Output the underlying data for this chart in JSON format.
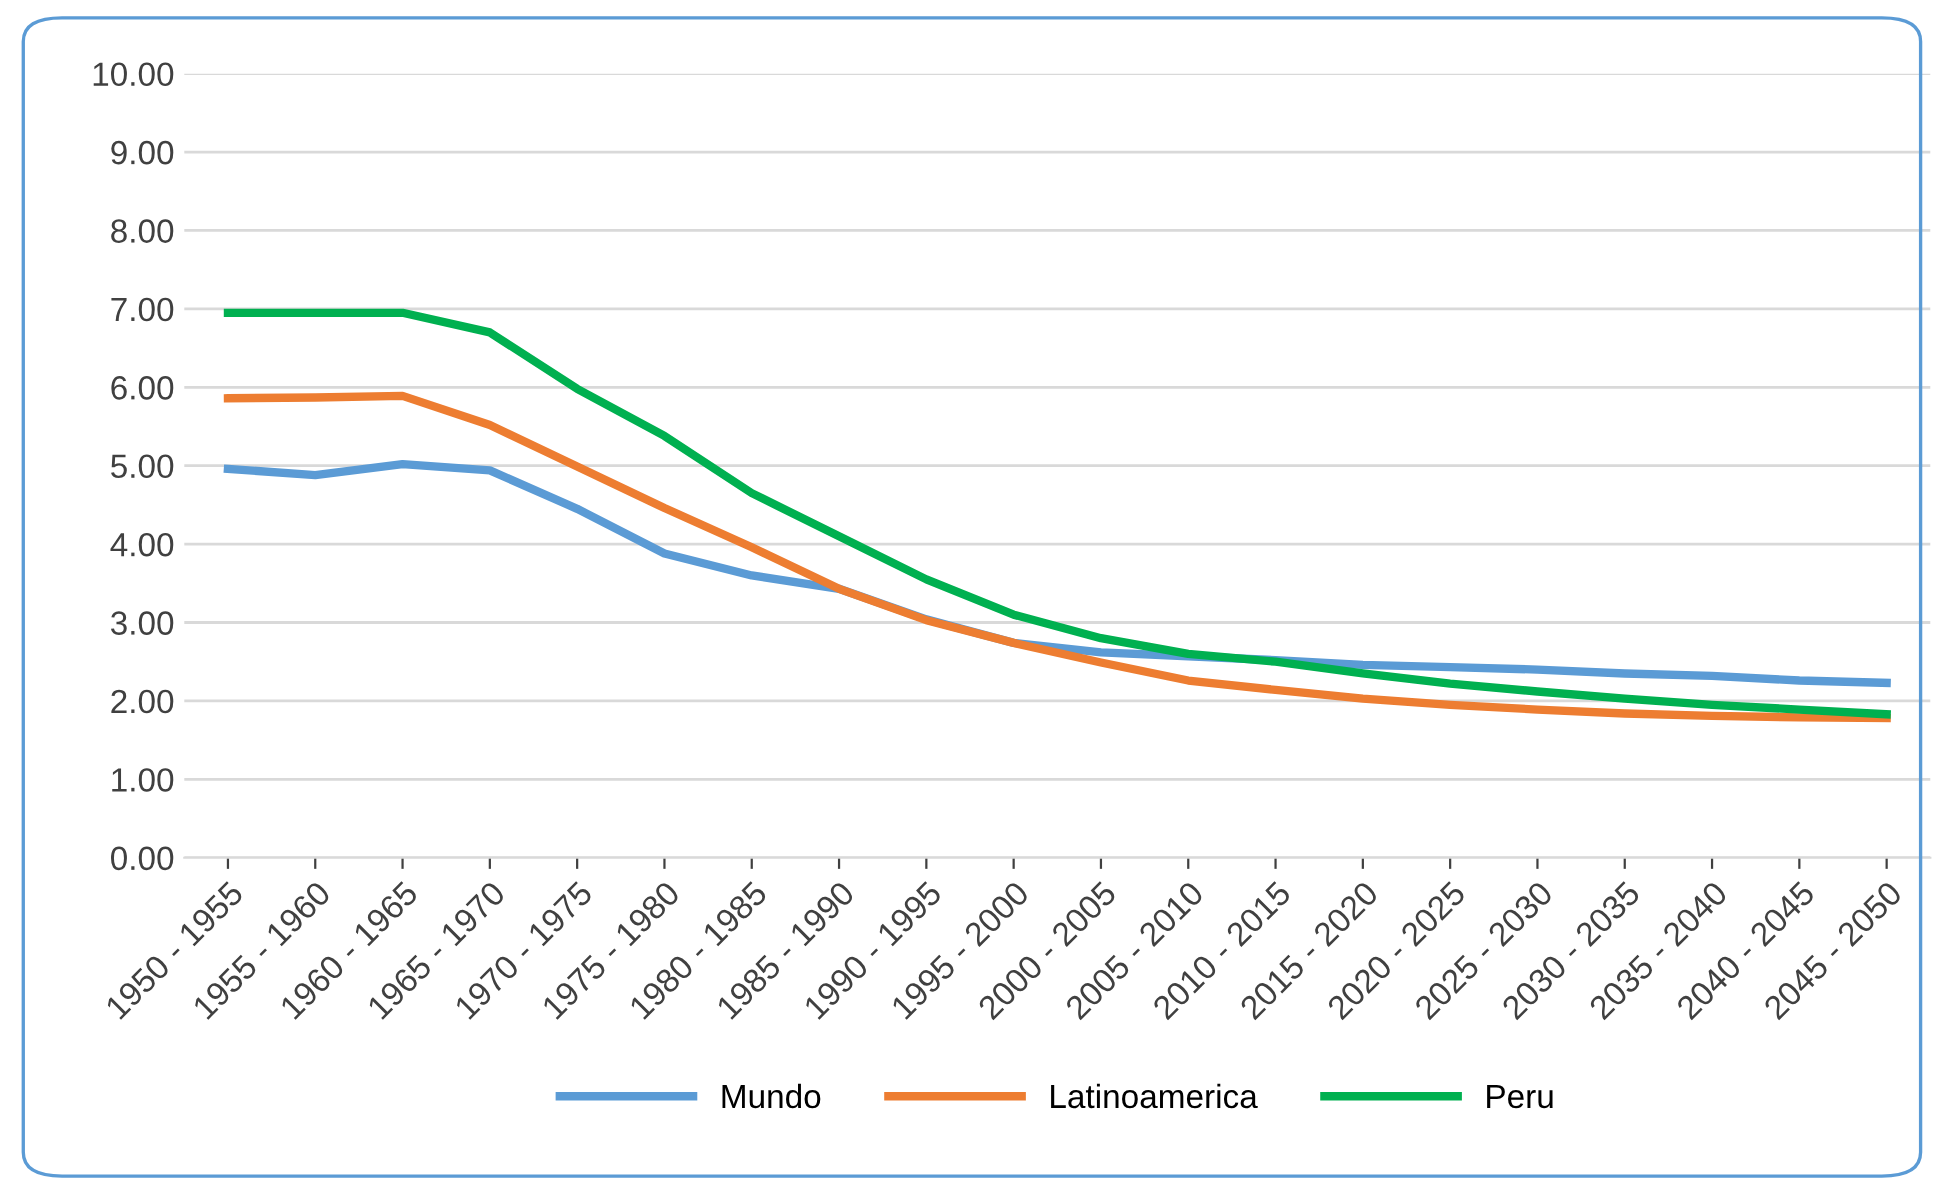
{
  "chart_data": {
    "type": "line",
    "categories": [
      "1950 - 1955",
      "1955 - 1960",
      "1960 - 1965",
      "1965 - 1970",
      "1970 - 1975",
      "1975 - 1980",
      "1980 - 1985",
      "1985 - 1990",
      "1990 - 1995",
      "1995 - 2000",
      "2000 - 2005",
      "2005 - 2010",
      "2010 - 2015",
      "2015 - 2020",
      "2020 - 2025",
      "2025 - 2030",
      "2030 - 2035",
      "2035 - 2040",
      "2040 - 2045",
      "2045 - 2050"
    ],
    "series": [
      {
        "name": "Mundo",
        "color": "#5b9bd5",
        "values": [
          4.96,
          4.88,
          5.02,
          4.94,
          4.45,
          3.88,
          3.6,
          3.43,
          3.04,
          2.74,
          2.62,
          2.57,
          2.52,
          2.46,
          2.43,
          2.4,
          2.35,
          2.32,
          2.26,
          2.23
        ]
      },
      {
        "name": "Latinoamerica",
        "color": "#ed7d31",
        "values": [
          5.86,
          5.87,
          5.89,
          5.52,
          4.99,
          4.46,
          3.96,
          3.43,
          3.03,
          2.74,
          2.49,
          2.26,
          2.14,
          2.03,
          1.95,
          1.89,
          1.84,
          1.81,
          1.79,
          1.78
        ]
      },
      {
        "name": "Peru",
        "color": "#00b050",
        "values": [
          6.95,
          6.95,
          6.95,
          6.7,
          5.98,
          5.38,
          4.65,
          4.1,
          3.55,
          3.1,
          2.8,
          2.6,
          2.5,
          2.35,
          2.22,
          2.12,
          2.03,
          1.95,
          1.89,
          1.83
        ]
      }
    ],
    "ylim": [
      0,
      10
    ],
    "yticks": [
      {
        "value": 0,
        "label": "0.00"
      },
      {
        "value": 1,
        "label": "1.00"
      },
      {
        "value": 2,
        "label": "2.00"
      },
      {
        "value": 3,
        "label": "3.00"
      },
      {
        "value": 4,
        "label": "4.00"
      },
      {
        "value": 5,
        "label": "5.00"
      },
      {
        "value": 6,
        "label": "6.00"
      },
      {
        "value": 7,
        "label": "7.00"
      },
      {
        "value": 8,
        "label": "8.00"
      },
      {
        "value": 9,
        "label": "9.00"
      },
      {
        "value": 10,
        "label": "10.00"
      }
    ],
    "grid": "y",
    "legend": "bottom",
    "marker": "none",
    "line_style": "solid"
  }
}
